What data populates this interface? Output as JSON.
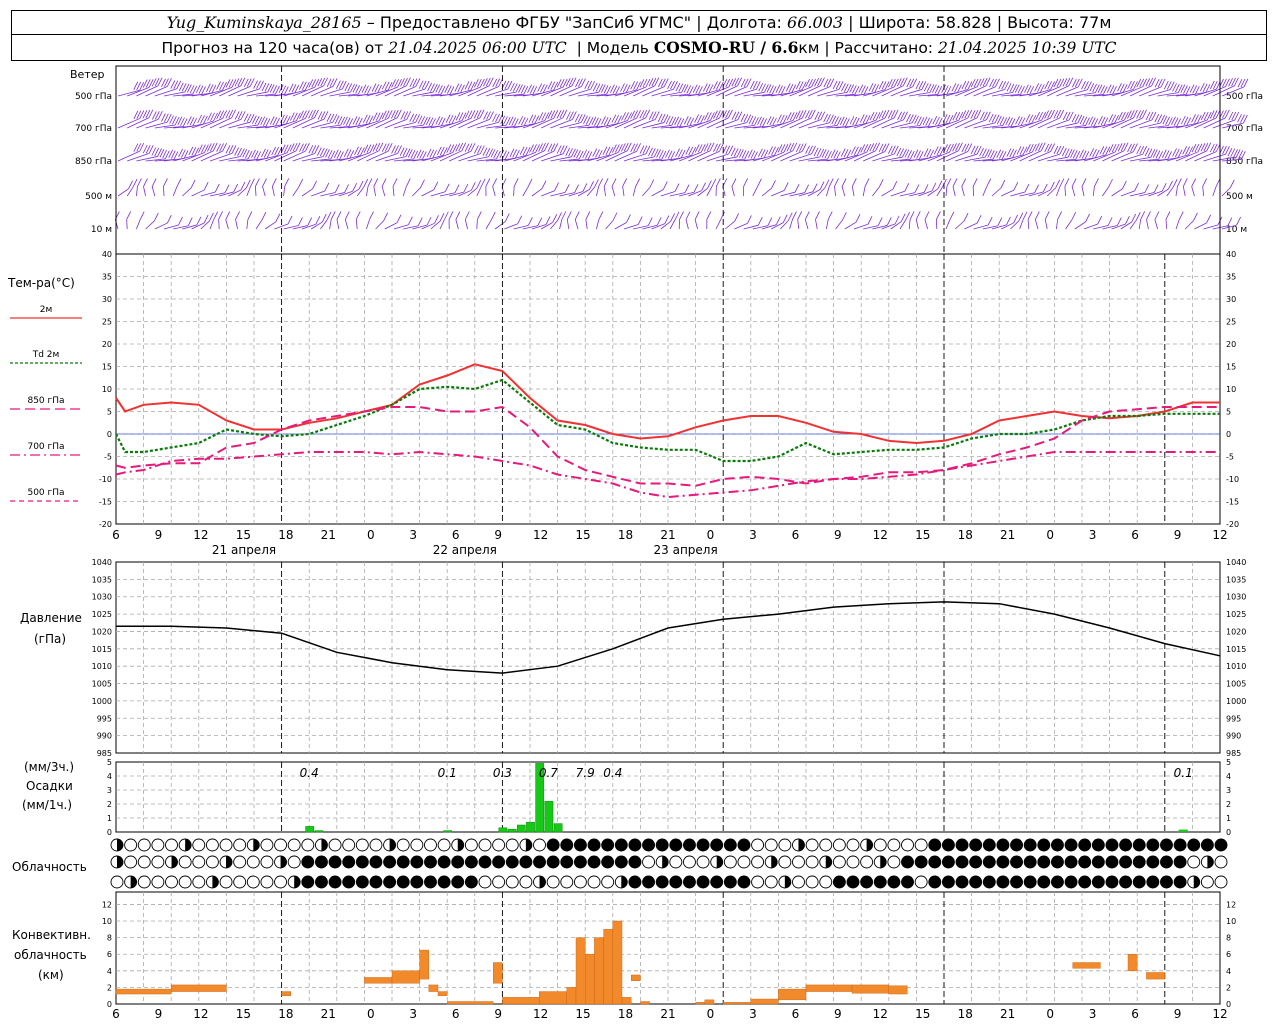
{
  "header": {
    "station": "Yug_Kuminskaya_28165",
    "dash": "–",
    "provided": "Предоставлено ФГБУ \"ЗапСиб УГМС\"",
    "lon_label": "Долгота:",
    "lon": "66.003",
    "lat_label": "Широта:",
    "lat": "58.828",
    "alt_label": "Высота:",
    "alt": "77м",
    "fc_label": "Прогноз на 120 часа(ов) от",
    "fc_time": "21.04.2025 06:00 UTC",
    "model_label": "Модель",
    "model": "COSMO-RU / 6.6",
    "model_unit": "км",
    "calc_label": "Рассчитано:",
    "calc_time": "21.04.2025 10:39 UTC"
  },
  "wind_panel": {
    "title": "Ветер",
    "levels": [
      "500 гПа",
      "700 гПа",
      "850 гПа",
      "500 м",
      "10  м"
    ]
  },
  "temp_panel": {
    "title": "Тем-ра(°C)",
    "legend": [
      {
        "label": "2м",
        "color": "#f03232",
        "dash": ""
      },
      {
        "label": "Td  2м",
        "color": "#0a7a0a",
        "dash": "3,2"
      },
      {
        "label": "850 гПа",
        "color": "#e6197d",
        "dash": "10,5"
      },
      {
        "label": "700 гПа",
        "color": "#e6197d",
        "dash": "10,4,2,4"
      },
      {
        "label": "500 гПа",
        "color": "#e6197d",
        "dash": "5,4"
      }
    ],
    "yticks": [
      "40",
      "35",
      "30",
      "25",
      "20",
      "15",
      "10",
      "5",
      "0",
      "-5",
      "-10",
      "-15",
      "-20"
    ]
  },
  "time_axis": {
    "hours": [
      "6",
      "9",
      "12",
      "15",
      "18",
      "21",
      "0",
      "3",
      "6",
      "9",
      "12",
      "15",
      "18",
      "21",
      "0",
      "3",
      "6",
      "9",
      "12",
      "15",
      "18",
      "21",
      "0",
      "3",
      "6",
      "9",
      "12"
    ],
    "dates": [
      "21 апреля",
      "22 апреля",
      "23 апреля"
    ]
  },
  "pressure_panel": {
    "title": "Давление",
    "unit": "(гПа)",
    "yticks": [
      "1040",
      "1035",
      "1030",
      "1025",
      "1020",
      "1015",
      "1010",
      "1005",
      "1000",
      "995",
      "990",
      "985"
    ]
  },
  "precip_panel": {
    "unit1": "(мм/3ч.)",
    "title": "Осадки",
    "unit2": "(мм/1ч.)",
    "yticks": [
      "5",
      "4",
      "3",
      "2",
      "1",
      "0"
    ],
    "labels": [
      "0.4",
      "0.1",
      "0.3",
      "0.7",
      "7.9",
      "0.4",
      "0.1"
    ]
  },
  "cloud_panel": {
    "title": "Облачность"
  },
  "conv_panel": {
    "title1": "Конвективн.",
    "title2": "облачность",
    "unit": "(км)",
    "yticks": [
      "12",
      "10",
      "8",
      "6",
      "4",
      "2",
      "0"
    ]
  },
  "chart_data": [
    {
      "type": "line",
      "title": "Тем-ра(°C)",
      "x_hours": [
        0,
        1,
        3,
        6,
        9,
        12,
        15,
        18,
        21,
        24,
        27,
        30,
        33,
        36,
        39,
        42,
        45,
        48,
        51,
        54,
        57,
        60,
        63,
        66,
        69,
        72,
        75,
        78,
        81,
        84,
        87,
        90,
        93,
        96,
        99,
        102,
        105,
        108,
        111,
        114,
        117,
        120
      ],
      "ylim": [
        -20,
        40
      ],
      "series": [
        {
          "name": "2м",
          "color": "#f03232",
          "values": [
            8,
            5,
            6.5,
            7,
            6.5,
            3,
            1,
            1,
            2.5,
            3.5,
            5,
            6.5,
            11,
            13,
            15.5,
            14,
            8,
            3,
            2,
            0,
            -1,
            -0.5,
            1.5,
            3,
            4,
            4,
            2.5,
            0.5,
            0,
            -1.5,
            -2,
            -1.5,
            0,
            3,
            4,
            5,
            4,
            3.5,
            4,
            5,
            7,
            7
          ]
        },
        {
          "name": "Td  2м",
          "color": "#0a7a0a",
          "values": [
            0,
            -4,
            -4,
            -3,
            -2,
            1,
            0,
            -0.5,
            0,
            2,
            4,
            6.5,
            10,
            10.5,
            10,
            12,
            7,
            2,
            1,
            -2,
            -3,
            -3.5,
            -3.5,
            -6,
            -6,
            -5,
            -2,
            -4.5,
            -4,
            -3.5,
            -3.5,
            -3,
            -1,
            0,
            0,
            1,
            3,
            4,
            4,
            4.5,
            4.5,
            4.5
          ]
        },
        {
          "name": "850 гПа",
          "color": "#e6197d",
          "values": [
            -7,
            -7.5,
            -7,
            -6.5,
            -6.5,
            -3,
            -2,
            1,
            3,
            4,
            5,
            6,
            6,
            5,
            5,
            6,
            1.5,
            -5,
            -8,
            -9.5,
            -11,
            -11,
            -11.5,
            -10,
            -9.5,
            -10,
            -11,
            -10,
            -9.5,
            -8.5,
            -8.5,
            -8,
            -6.5,
            -4.5,
            -3,
            -1,
            3,
            5,
            5.5,
            6,
            6,
            6
          ]
        },
        {
          "name": "700 гПа",
          "color": "#e6197d",
          "values": [
            -9,
            -8.5,
            -8,
            -6,
            -5.5,
            -5.5,
            -5,
            -4.5,
            -4,
            -4,
            -4,
            -4.5,
            -4,
            -4.5,
            -5,
            -6,
            -7,
            -9,
            -10,
            -11,
            -13,
            -14,
            -13.5,
            -13,
            -12.5,
            -11.5,
            -10.5,
            -10,
            -10,
            -9.5,
            -9,
            -8,
            -7,
            -6,
            -5,
            -4,
            -4,
            -4,
            -4,
            -4,
            -4,
            -4
          ]
        },
        {
          "name": "500 гПа",
          "color": "#e6197d",
          "values": []
        }
      ]
    },
    {
      "type": "line",
      "title": "Давление",
      "x_hours": [
        0,
        6,
        12,
        18,
        24,
        30,
        36,
        42,
        48,
        54,
        60,
        66,
        72,
        78,
        84,
        90,
        96,
        102,
        108,
        114,
        120
      ],
      "ylim": [
        985,
        1040
      ],
      "series": [
        {
          "name": "",
          "color": "#000000",
          "values": [
            1021.5,
            1021.5,
            1021,
            1019.5,
            1014,
            1011,
            1009,
            1008,
            1010,
            1015,
            1021,
            1023.5,
            1025,
            1027,
            1028,
            1028.5,
            1028,
            1025,
            1021,
            1016.5,
            1013
          ]
        }
      ]
    },
    {
      "type": "bar",
      "title": "Осадки",
      "x_hours": [
        21,
        22,
        36,
        42,
        43,
        44,
        45,
        46,
        47,
        48
      ],
      "ylim": [
        0,
        5
      ],
      "values": [
        0.4,
        0.1,
        0.1,
        0.3,
        0.2,
        0.5,
        0.7,
        4.9,
        2.2,
        0.6
      ],
      "extra": [
        {
          "x_hours": 116,
          "value": 0.1
        }
      ]
    },
    {
      "type": "bar",
      "title": "Конвективн. облачность",
      "ylim": [
        0,
        12
      ],
      "segments": [
        {
          "start": 0,
          "end": 6,
          "low": 1.2,
          "high": 1.8
        },
        {
          "start": 6,
          "end": 12,
          "low": 1.5,
          "high": 2.3
        },
        {
          "start": 18,
          "end": 19,
          "low": 1.0,
          "high": 1.5
        },
        {
          "start": 27,
          "end": 30,
          "low": 2.5,
          "high": 3.2
        },
        {
          "start": 30,
          "end": 33,
          "low": 2.5,
          "high": 4.0
        },
        {
          "start": 33,
          "end": 34,
          "low": 3.0,
          "high": 6.5
        },
        {
          "start": 34,
          "end": 35,
          "low": 1.5,
          "high": 2.3
        },
        {
          "start": 35,
          "end": 36,
          "low": 1.0,
          "high": 1.5
        },
        {
          "start": 36,
          "end": 41,
          "low": 0.0,
          "high": 0.3
        },
        {
          "start": 41,
          "end": 42,
          "low": 2.5,
          "high": 5.0
        },
        {
          "start": 42,
          "end": 46,
          "low": 0.0,
          "high": 0.8
        },
        {
          "start": 46,
          "end": 49,
          "low": 0.0,
          "high": 1.5
        },
        {
          "start": 49,
          "end": 50,
          "low": 0.0,
          "high": 2.0
        },
        {
          "start": 50,
          "end": 51,
          "low": 0.0,
          "high": 8.0
        },
        {
          "start": 51,
          "end": 52,
          "low": 0.0,
          "high": 6.0
        },
        {
          "start": 52,
          "end": 53,
          "low": 0.0,
          "high": 8.0
        },
        {
          "start": 53,
          "end": 54,
          "low": 0.0,
          "high": 9.0
        },
        {
          "start": 54,
          "end": 55,
          "low": 0.0,
          "high": 10.0
        },
        {
          "start": 55,
          "end": 56,
          "low": 0.0,
          "high": 0.8
        },
        {
          "start": 56,
          "end": 57,
          "low": 2.8,
          "high": 3.5
        },
        {
          "start": 57,
          "end": 58,
          "low": 0.0,
          "high": 0.3
        },
        {
          "start": 63,
          "end": 64,
          "low": 0.0,
          "high": 0.2
        },
        {
          "start": 64,
          "end": 65,
          "low": 0.0,
          "high": 0.5
        },
        {
          "start": 66,
          "end": 69,
          "low": 0.0,
          "high": 0.2
        },
        {
          "start": 69,
          "end": 72,
          "low": 0.0,
          "high": 0.6
        },
        {
          "start": 72,
          "end": 75,
          "low": 0.5,
          "high": 1.8
        },
        {
          "start": 75,
          "end": 80,
          "low": 1.5,
          "high": 2.3
        },
        {
          "start": 80,
          "end": 84,
          "low": 1.3,
          "high": 2.3
        },
        {
          "start": 84,
          "end": 86,
          "low": 1.2,
          "high": 2.2
        },
        {
          "start": 104,
          "end": 107,
          "low": 4.3,
          "high": 5.0
        },
        {
          "start": 110,
          "end": 111,
          "low": 4.0,
          "high": 6.0
        },
        {
          "start": 112,
          "end": 114,
          "low": 3.0,
          "high": 3.8
        }
      ]
    }
  ]
}
